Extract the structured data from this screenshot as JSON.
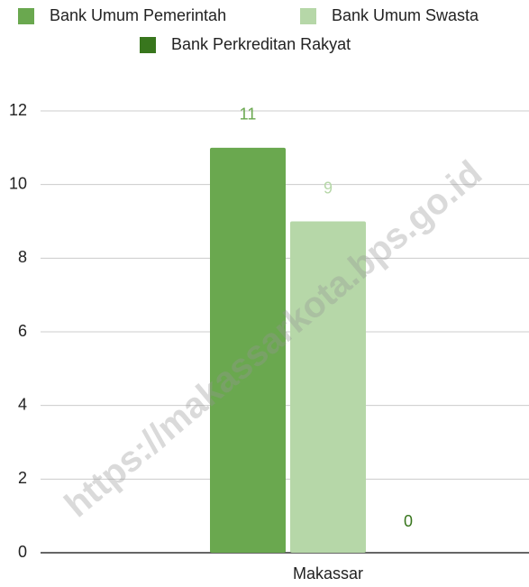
{
  "chart_data": {
    "type": "bar",
    "categories": [
      "Makassar"
    ],
    "series": [
      {
        "name": "Bank Umum Pemerintah",
        "color": "#6aa84f",
        "values": [
          11
        ]
      },
      {
        "name": "Bank Umum Swasta",
        "color": "#b6d7a8",
        "values": [
          9
        ]
      },
      {
        "name": "Bank Perkreditan Rakyat",
        "color": "#38761d",
        "values": [
          0
        ]
      }
    ],
    "ylim": [
      0,
      12
    ],
    "yticks": [
      0,
      2,
      4,
      6,
      8,
      10,
      12
    ],
    "grid": true,
    "legend": "top",
    "watermark": "https://makassarkota.bps.go.id"
  }
}
